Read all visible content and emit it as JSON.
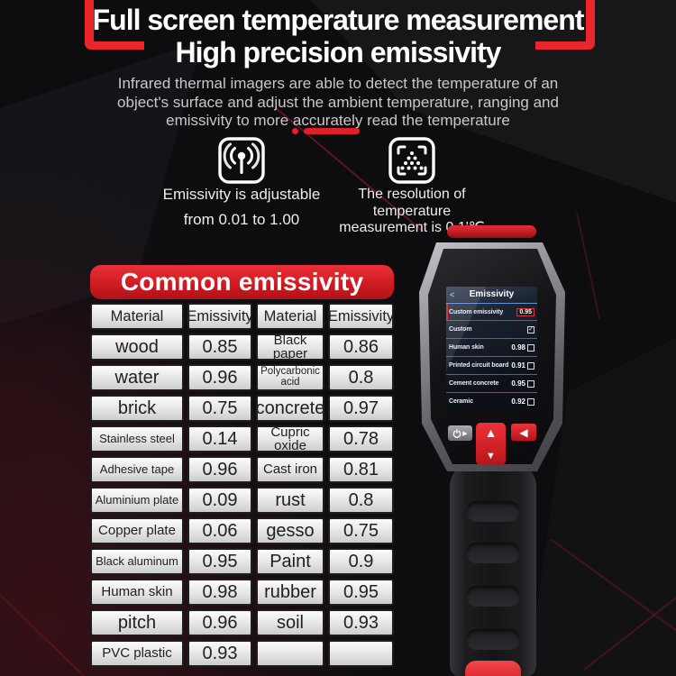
{
  "header": {
    "title_line1": "Full screen temperature measurement",
    "title_line2": "High precision emissivity",
    "description": "Infrared thermal imagers are able to detect the temperature of an object's surface and adjust the ambient temperature, ranging and emissivity to more accurately read the temperature"
  },
  "features": {
    "emissivity": {
      "icon": "broadcast-icon",
      "line1": "Emissivity is adjustable",
      "line2": "from 0.01 to 1.00"
    },
    "resolution": {
      "icon": "resolution-target-icon",
      "line1": "The resolution of",
      "line2": "temperature",
      "line3": "measurement is 0.1'℃"
    }
  },
  "emissivity_table": {
    "banner": "Common emissivity",
    "headers": [
      "Material",
      "Emissivity",
      "Material",
      "Emissivity"
    ],
    "rows": [
      [
        "wood",
        "0.85",
        "Black paper",
        "0.86"
      ],
      [
        "water",
        "0.96",
        "Polycarbonic acid",
        "0.8"
      ],
      [
        "brick",
        "0.75",
        "concrete",
        "0.97"
      ],
      [
        "Stainless steel",
        "0.14",
        "Cupric oxide",
        "0.78"
      ],
      [
        "Adhesive tape",
        "0.96",
        "Cast iron",
        "0.81"
      ],
      [
        "Aluminium plate",
        "0.09",
        "rust",
        "0.8"
      ],
      [
        "Copper plate",
        "0.06",
        "gesso",
        "0.75"
      ],
      [
        "Black aluminum",
        "0.95",
        "Paint",
        "0.9"
      ],
      [
        "Human skin",
        "0.98",
        "rubber",
        "0.95"
      ],
      [
        "pitch",
        "0.96",
        "soil",
        "0.93"
      ],
      [
        "PVC plastic",
        "0.93",
        "",
        ""
      ]
    ]
  },
  "device": {
    "screen": {
      "back_icon": "<",
      "title": "Emissivity",
      "rows": [
        {
          "label": "Custom emissivity",
          "value": "0.95"
        },
        {
          "label": "Custom",
          "checked": "✓"
        },
        {
          "label": "Human skin",
          "value": "0.98"
        },
        {
          "label": "Printed circuit board",
          "value": "0.91"
        },
        {
          "label": "Cement concrete",
          "value": "0.95"
        },
        {
          "label": "Ceramic",
          "value": "0.92"
        }
      ]
    },
    "buttons": {
      "power_play": "▶",
      "up": "▲",
      "down": "▼",
      "back": "◀"
    }
  },
  "colors": {
    "accent_red": "#e8262c",
    "banner_red": "#d01b22",
    "screen_separator_blue": "#2f6db5",
    "table_cell_light": "#e9e9e9"
  }
}
